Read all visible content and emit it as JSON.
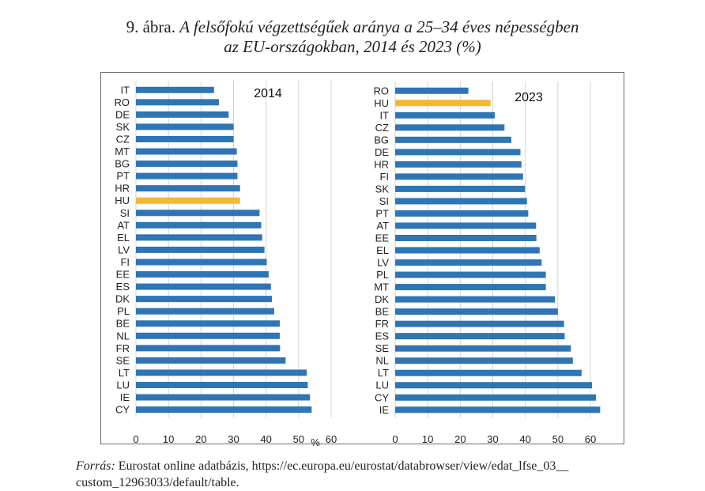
{
  "figure": {
    "title_prefix": "9. ábra.",
    "title_line1": "A felsőfokú végzettségűek aránya a 25–34 éves népességben",
    "title_line2": "az EU-országokban, 2014 és 2023 (%)"
  },
  "source": {
    "label": "Forrás:",
    "text_line1": "Eurostat online adatbázis, https://ec.europa.eu/eurostat/databrowser/view/edat_lfse_03__",
    "text_line2": "custom_12963033/default/table."
  },
  "colors": {
    "bar": "#2e75b6",
    "highlight": "#f5b731",
    "grid": "#d4d4d4"
  },
  "chart_data": [
    {
      "type": "bar",
      "orientation": "horizontal",
      "title": "2014",
      "xlabel": "%",
      "xlim": [
        0,
        60
      ],
      "xticks": [
        0,
        10,
        20,
        30,
        40,
        50,
        60
      ],
      "grid": true,
      "highlight": "HU",
      "categories": [
        "IT",
        "RO",
        "DE",
        "SK",
        "CZ",
        "MT",
        "BG",
        "PT",
        "HR",
        "HU",
        "SI",
        "AT",
        "EL",
        "LV",
        "FI",
        "EE",
        "ES",
        "DK",
        "PL",
        "BE",
        "NL",
        "FR",
        "SE",
        "LT",
        "LU",
        "IE",
        "CY"
      ],
      "values": [
        24,
        25.5,
        28.5,
        30,
        30,
        31,
        31.2,
        31.2,
        32,
        32,
        38,
        38.5,
        38.8,
        39.5,
        40.2,
        40.8,
        41.5,
        41.8,
        42.5,
        44.2,
        44.2,
        44.3,
        46,
        52.5,
        52.8,
        53.5,
        54
      ]
    },
    {
      "type": "bar",
      "orientation": "horizontal",
      "title": "2023",
      "xlabel": "",
      "xlim": [
        0,
        60
      ],
      "xticks": [
        0,
        10,
        20,
        30,
        40,
        50,
        60
      ],
      "grid": true,
      "highlight": "HU",
      "categories": [
        "RO",
        "HU",
        "IT",
        "CZ",
        "BG",
        "DE",
        "HR",
        "FI",
        "SK",
        "SI",
        "PT",
        "AT",
        "EE",
        "EL",
        "LV",
        "PL",
        "MT",
        "DK",
        "BE",
        "FR",
        "ES",
        "SE",
        "NL",
        "LT",
        "LU",
        "CY",
        "IE"
      ],
      "values": [
        22.5,
        29.3,
        30.6,
        33.6,
        35.7,
        38.5,
        38.8,
        39.3,
        39.9,
        40.5,
        40.9,
        43.3,
        43.4,
        44.4,
        45,
        46.3,
        46.3,
        49.1,
        50,
        51.9,
        52.1,
        54,
        54.6,
        57.3,
        60.5,
        61.7,
        63
      ]
    }
  ]
}
